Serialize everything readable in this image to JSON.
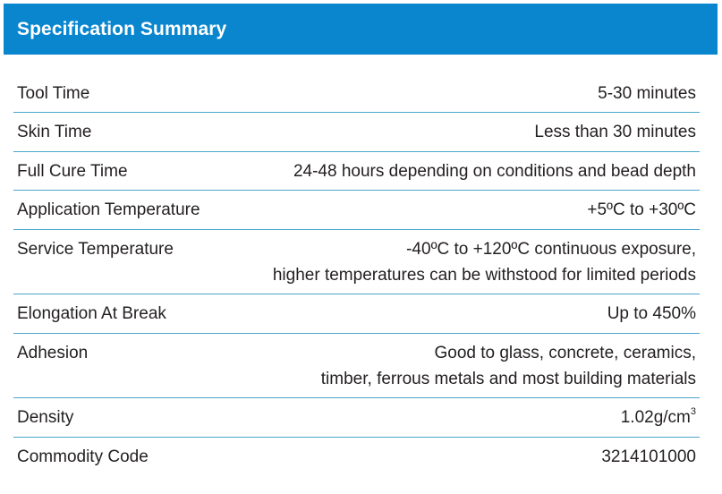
{
  "header": {
    "title": "Specification Summary"
  },
  "colors": {
    "header_background": "#0a86cf",
    "row_divider": "#4aa6c9",
    "text": "#231f20"
  },
  "specs": [
    {
      "label": "Tool Time",
      "value": [
        "5-30 minutes"
      ]
    },
    {
      "label": "Skin Time",
      "value": [
        "Less than 30 minutes"
      ]
    },
    {
      "label": "Full Cure Time",
      "value": [
        "24-48 hours depending on conditions and bead depth"
      ]
    },
    {
      "label": "Application Temperature",
      "value": [
        "+5ºC to +30ºC"
      ]
    },
    {
      "label": "Service Temperature",
      "value": [
        "-40ºC to +120ºC continuous exposure,",
        "higher temperatures can be withstood for limited periods"
      ]
    },
    {
      "label": "Elongation At Break",
      "value": [
        "Up to 450%"
      ]
    },
    {
      "label": "Adhesion",
      "value": [
        "Good to glass, concrete, ceramics,",
        "timber, ferrous metals and most building materials"
      ]
    },
    {
      "label": "Density",
      "value": [
        "1.02g/cm",
        "3"
      ]
    },
    {
      "label": "Commodity Code",
      "value": [
        "3214101000"
      ]
    }
  ]
}
